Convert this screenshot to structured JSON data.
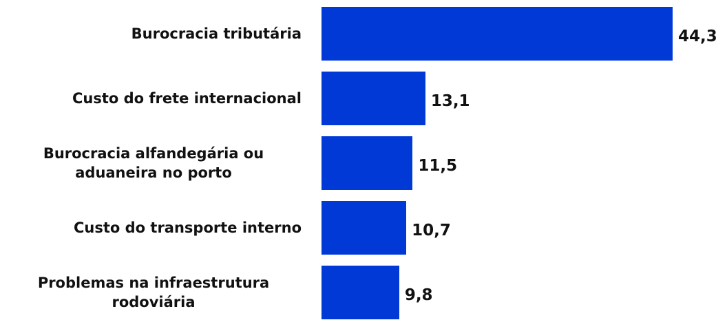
{
  "chart_data": {
    "type": "bar",
    "orientation": "horizontal",
    "categories": [
      "Burocracia tributária",
      "Custo do frete internacional",
      "Burocracia alfandegária ou aduaneira no porto",
      "Custo do transporte interno",
      "Problemas na infraestrutura rodoviária"
    ],
    "values": [
      44.3,
      13.1,
      11.5,
      10.7,
      9.8
    ],
    "value_labels": [
      "44,3",
      "13,1",
      "11,5",
      "10,7",
      "9,8"
    ],
    "color": "#0039d6"
  }
}
